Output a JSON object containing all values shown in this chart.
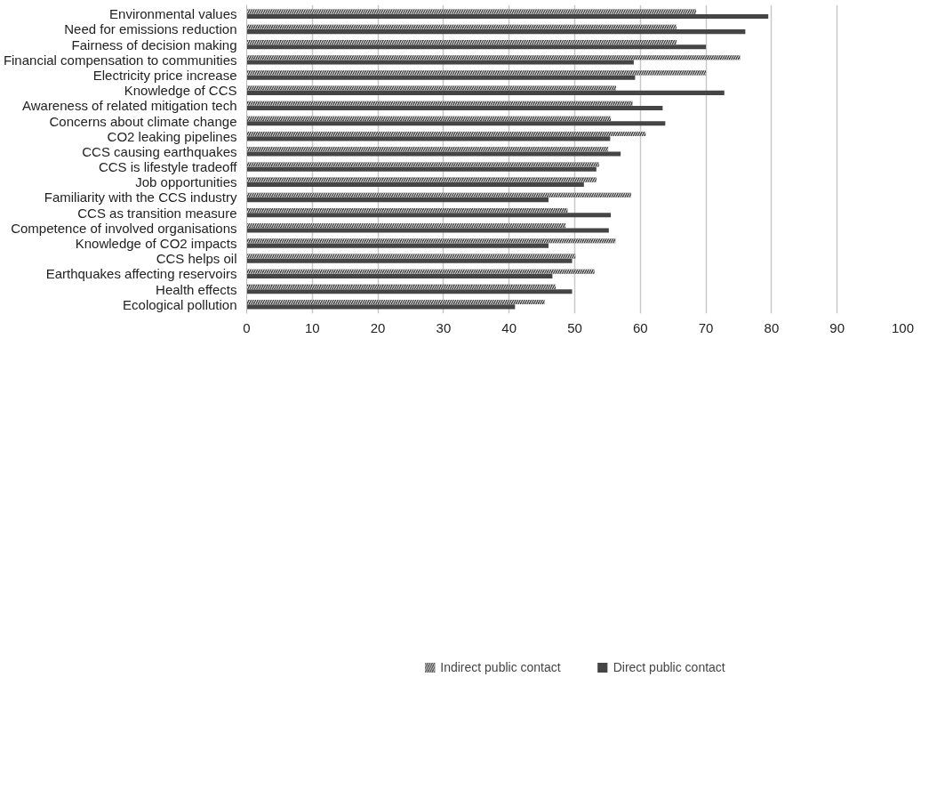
{
  "chart_data": {
    "type": "bar",
    "orientation": "horizontal",
    "categories": [
      "Environmental values",
      "Need for emissions reduction",
      "Fairness of decision making",
      "Financial compensation to communities",
      "Electricity price increase",
      "Knowledge of CCS",
      "Awareness of related mitigation tech",
      "Concerns about climate change",
      "CO2 leaking pipelines",
      "CCS causing earthquakes",
      "CCS is lifestyle tradeoff",
      "Job opportunities",
      "Familiarity with the CCS industry",
      "CCS as transition measure",
      "Competence of involved organisations",
      "Knowledge of CO2 impacts",
      "CCS helps oil",
      "Earthquakes affecting reservoirs",
      "Health effects",
      "Ecological pollution"
    ],
    "series": [
      {
        "name": "Indirect public contact",
        "color": "#3a3a3a",
        "values": [
          68.5,
          65.5,
          65.5,
          75.2,
          70,
          56.3,
          58.8,
          55.5,
          60.8,
          55.1,
          53.7,
          53.3,
          58.6,
          48.9,
          48.6,
          56.2,
          50.1,
          53,
          47.1,
          45.4
        ]
      },
      {
        "name": "Direct public contact",
        "color": "#454545",
        "values": [
          79.5,
          76,
          70,
          59,
          59.2,
          72.8,
          63.4,
          63.8,
          55.4,
          57,
          53.3,
          51.4,
          46,
          55.5,
          55.2,
          46,
          49.6,
          46.6,
          49.6,
          40.9
        ]
      }
    ],
    "xlim": [
      0,
      100
    ],
    "xticks": [
      0,
      10,
      20,
      30,
      40,
      50,
      60,
      70,
      80,
      90,
      100
    ],
    "grid": "x",
    "legend": "bottom"
  }
}
